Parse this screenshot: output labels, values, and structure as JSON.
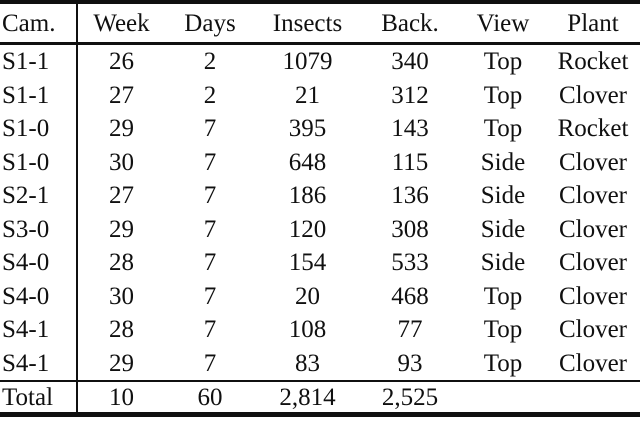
{
  "table": {
    "columns": [
      "Cam.",
      "Week",
      "Days",
      "Insects",
      "Back.",
      "View",
      "Plant"
    ],
    "rows": [
      [
        "S1-1",
        "26",
        "2",
        "1079",
        "340",
        "Top",
        "Rocket"
      ],
      [
        "S1-1",
        "27",
        "2",
        "21",
        "312",
        "Top",
        "Clover"
      ],
      [
        "S1-0",
        "29",
        "7",
        "395",
        "143",
        "Top",
        "Rocket"
      ],
      [
        "S1-0",
        "30",
        "7",
        "648",
        "115",
        "Side",
        "Clover"
      ],
      [
        "S2-1",
        "27",
        "7",
        "186",
        "136",
        "Side",
        "Clover"
      ],
      [
        "S3-0",
        "29",
        "7",
        "120",
        "308",
        "Side",
        "Clover"
      ],
      [
        "S4-0",
        "28",
        "7",
        "154",
        "533",
        "Side",
        "Clover"
      ],
      [
        "S4-0",
        "30",
        "7",
        "20",
        "468",
        "Top",
        "Clover"
      ],
      [
        "S4-1",
        "28",
        "7",
        "108",
        "77",
        "Top",
        "Clover"
      ],
      [
        "S4-1",
        "29",
        "7",
        "83",
        "93",
        "Top",
        "Clover"
      ]
    ],
    "total_row": [
      "Total",
      "10",
      "60",
      "2,814",
      "2,525",
      "",
      ""
    ]
  },
  "colors": {
    "text": "#101010",
    "rule": "#101010",
    "background": "#ffffff"
  }
}
